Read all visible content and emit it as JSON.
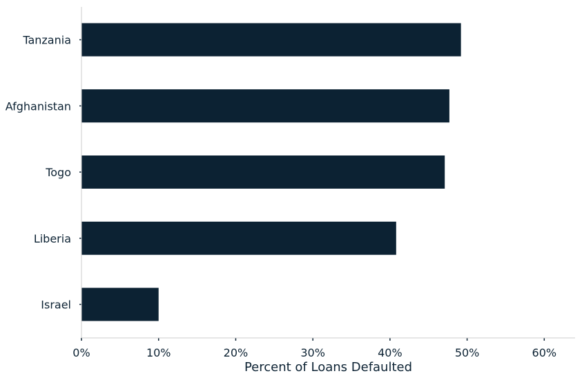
{
  "chart_data": {
    "type": "bar",
    "orientation": "horizontal",
    "categories": [
      "Tanzania",
      "Afghanistan",
      "Togo",
      "Liberia",
      "Israel"
    ],
    "values": [
      49.2,
      47.7,
      47.1,
      40.8,
      10.0
    ],
    "xlabel": "Percent of Loans Defaulted",
    "ylabel": "",
    "xlim": [
      0,
      64
    ],
    "xticks": [
      0,
      10,
      20,
      30,
      40,
      50,
      60
    ],
    "xtick_labels": [
      "0%",
      "10%",
      "20%",
      "30%",
      "40%",
      "50%",
      "60%"
    ],
    "grid": false,
    "legend": "none",
    "colors": {
      "bar": "#0c2233",
      "text": "#0c2233",
      "axis": "#cccccc",
      "tick": "#0c2233"
    }
  }
}
